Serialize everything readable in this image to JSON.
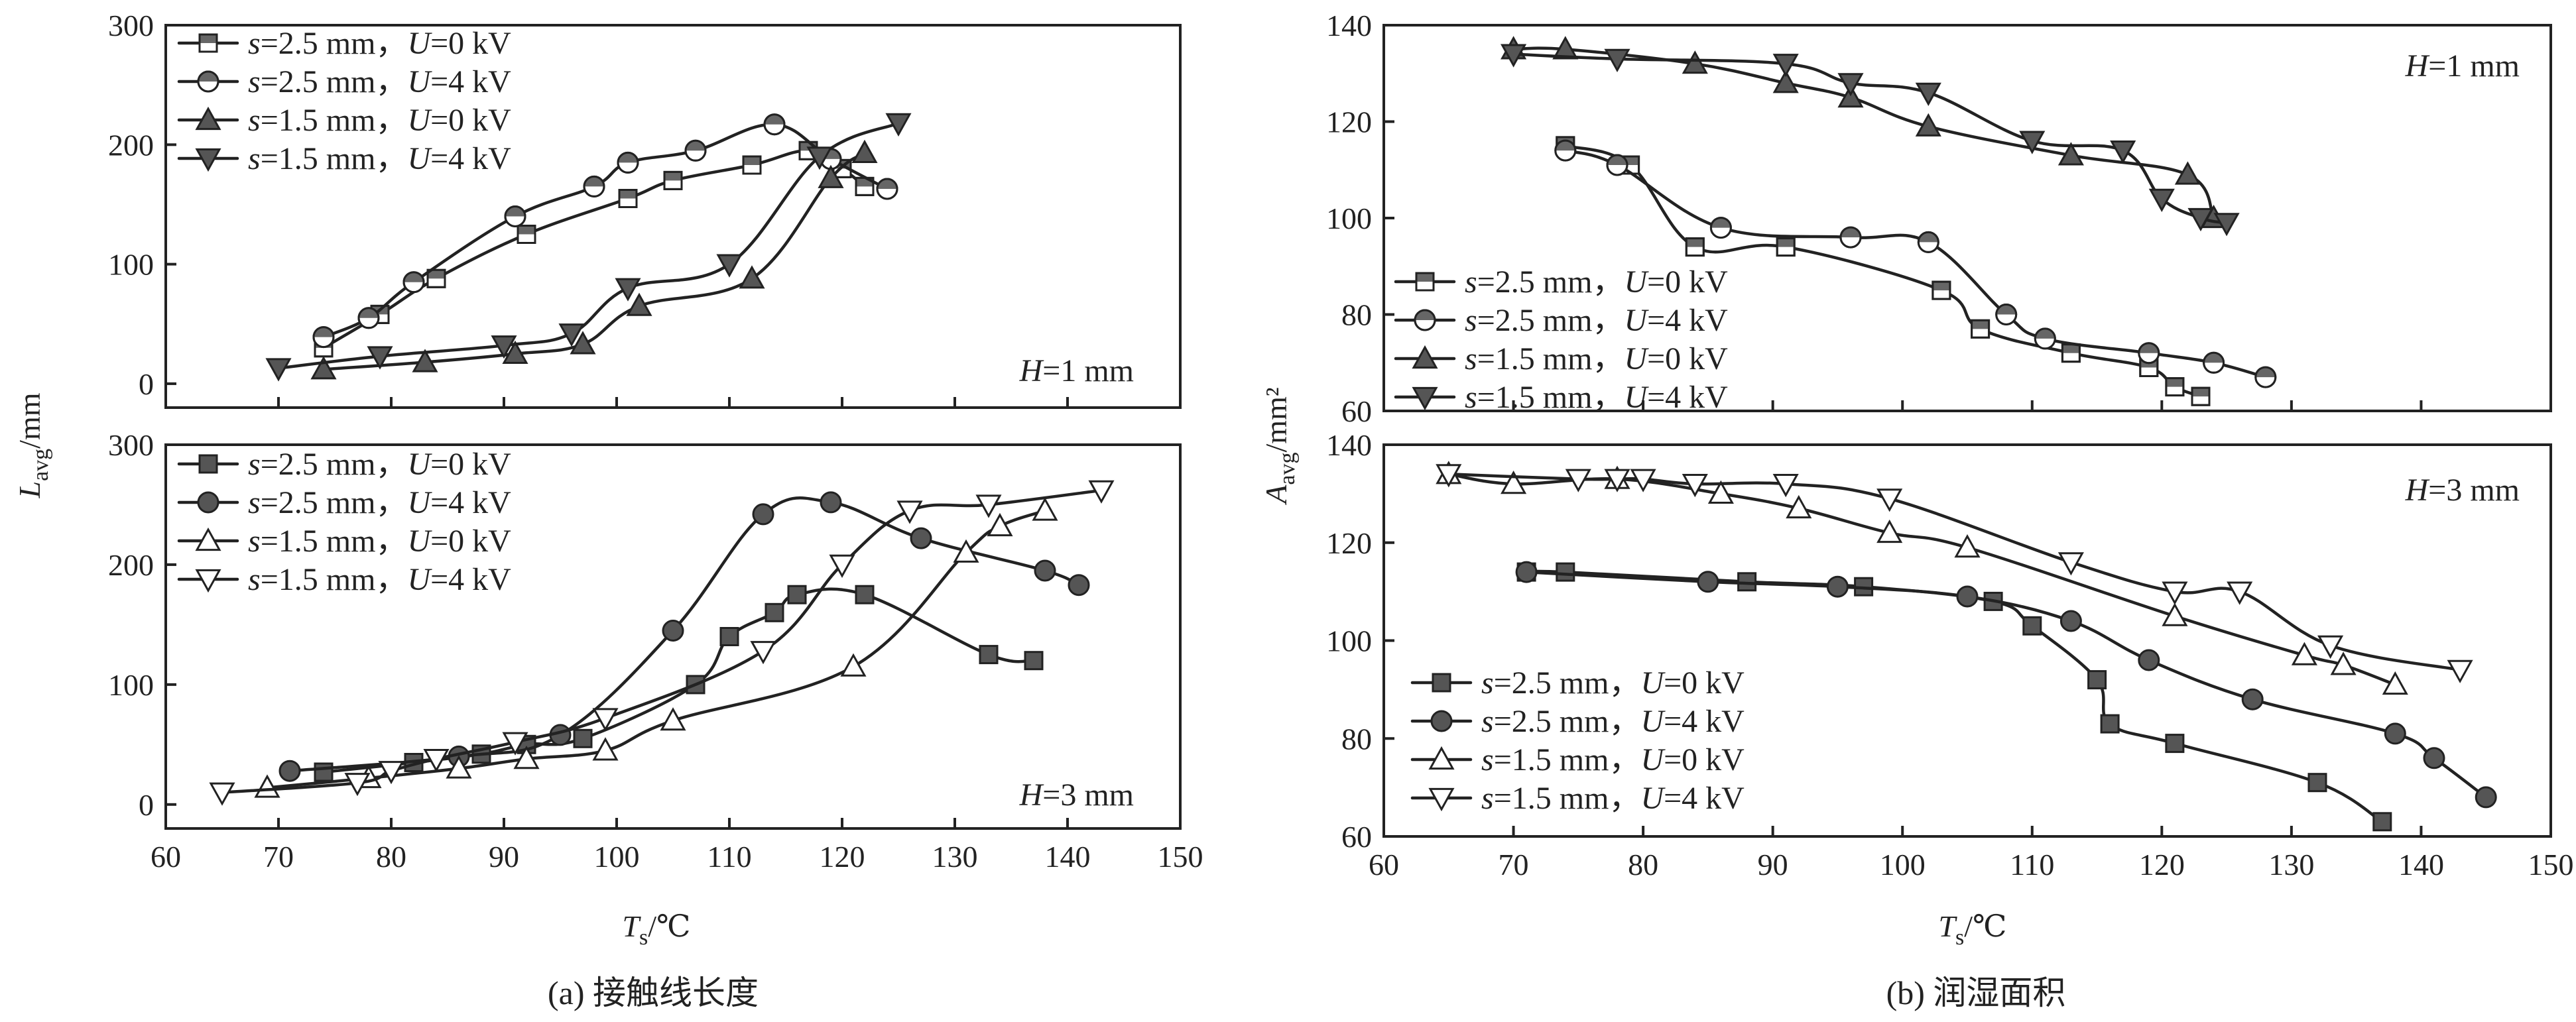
{
  "figure": {
    "x_axis_label": "T",
    "x_axis_sub": "s",
    "x_axis_unit": "/℃",
    "left_y_label": "L",
    "left_y_sub": "avg",
    "left_y_unit": "/mm",
    "right_y_label": "A",
    "right_y_sub": "avg",
    "right_y_unit": "/mm²",
    "caption_a": "(a) 接触线长度",
    "caption_b": "(b) 润湿面积",
    "annotations": [
      "H=1 mm",
      "H=3 mm",
      "H=1 mm",
      "H=3 mm"
    ]
  },
  "chart_data": [
    {
      "id": "a-top",
      "type": "line",
      "panel": "(a)",
      "annotation": "H=1 mm",
      "xlim": [
        60,
        150
      ],
      "ylim": [
        -20,
        300
      ],
      "xticks": [],
      "yticks": [
        0,
        100,
        200,
        300
      ],
      "legend": [
        "s=2.5 mm，U=0 kV",
        "s=2.5 mm，U=4 kV",
        "s=1.5 mm，U=0 kV",
        "s=1.5 mm，U=4 kV"
      ],
      "series": [
        {
          "name": "s=2.5 mm，U=0 kV",
          "marker": "square-half",
          "x": [
            74,
            79,
            84,
            92,
            101,
            105,
            112,
            117,
            120,
            122
          ],
          "y": [
            30,
            58,
            88,
            125,
            155,
            170,
            183,
            195,
            180,
            165
          ]
        },
        {
          "name": "s=2.5 mm，U=4 kV",
          "marker": "circle-half",
          "x": [
            74,
            78,
            82,
            91,
            98,
            101,
            107,
            114,
            119,
            124
          ],
          "y": [
            39,
            55,
            85,
            140,
            165,
            185,
            195,
            217,
            188,
            163
          ]
        },
        {
          "name": "s=1.5 mm，U=0 kV",
          "marker": "triangle-up",
          "x": [
            74,
            83,
            91,
            97,
            102,
            112,
            119,
            122
          ],
          "y": [
            12,
            18,
            25,
            33,
            65,
            88,
            172,
            193
          ]
        },
        {
          "name": "s=1.5 mm，U=4 kV",
          "marker": "triangle-down",
          "x": [
            70,
            79,
            90,
            96,
            101,
            110,
            118,
            125
          ],
          "y": [
            13,
            23,
            32,
            42,
            80,
            100,
            190,
            218
          ]
        }
      ]
    },
    {
      "id": "a-bottom",
      "type": "line",
      "panel": "(a)",
      "annotation": "H=3 mm",
      "xlim": [
        60,
        150
      ],
      "ylim": [
        -20,
        300
      ],
      "xticks": [
        60,
        70,
        80,
        90,
        100,
        110,
        120,
        130,
        140,
        150
      ],
      "yticks": [
        0,
        100,
        200,
        300
      ],
      "legend": [
        "s=2.5 mm，U=0 kV",
        "s=2.5 mm，U=4 kV",
        "s=1.5 mm，U=0 kV",
        "s=1.5 mm，U=4 kV"
      ],
      "series": [
        {
          "name": "s=2.5 mm，U=0 kV",
          "marker": "square",
          "x": [
            74,
            82,
            88,
            92,
            97,
            107,
            110,
            114,
            116,
            122,
            133,
            137
          ],
          "y": [
            27,
            35,
            42,
            50,
            55,
            100,
            140,
            160,
            175,
            175,
            125,
            120
          ]
        },
        {
          "name": "s=2.5 mm，U=4 kV",
          "marker": "circle",
          "x": [
            71,
            86,
            95,
            105,
            113,
            119,
            127,
            138,
            141
          ],
          "y": [
            28,
            40,
            58,
            145,
            242,
            252,
            222,
            195,
            183
          ]
        },
        {
          "name": "s=1.5 mm，U=0 kV",
          "marker": "triangle-up-open",
          "x": [
            69,
            78,
            86,
            92,
            99,
            105,
            121,
            131,
            134,
            138
          ],
          "y": [
            14,
            22,
            30,
            38,
            45,
            70,
            115,
            210,
            232,
            245
          ]
        },
        {
          "name": "s=1.5 mm，U=4 kV",
          "marker": "triangle-down-open",
          "x": [
            65,
            77,
            80,
            84,
            91,
            99,
            113,
            120,
            126,
            133,
            143
          ],
          "y": [
            10,
            18,
            28,
            38,
            52,
            72,
            128,
            200,
            245,
            250,
            262
          ]
        }
      ]
    },
    {
      "id": "b-top",
      "type": "line",
      "panel": "(b)",
      "annotation": "H=1 mm",
      "xlim": [
        60,
        150
      ],
      "ylim": [
        60,
        140
      ],
      "xticks": [],
      "yticks": [
        60,
        80,
        100,
        120,
        140
      ],
      "legend": [
        "s=2.5 mm，U=0 kV",
        "s=2.5 mm，U=4 kV",
        "s=1.5 mm，U=0 kV",
        "s=1.5 mm，U=4 kV"
      ],
      "series": [
        {
          "name": "s=2.5 mm，U=0 kV",
          "marker": "square-half",
          "x": [
            74,
            79,
            84,
            91,
            103,
            106,
            113,
            119,
            121,
            123
          ],
          "y": [
            115,
            111,
            94,
            94,
            85,
            77,
            72,
            69,
            65,
            63
          ]
        },
        {
          "name": "s=2.5 mm，U=4 kV",
          "marker": "circle-half",
          "x": [
            74,
            78,
            86,
            96,
            102,
            108,
            111,
            119,
            124,
            128
          ],
          "y": [
            114,
            111,
            98,
            96,
            95,
            80,
            75,
            72,
            70,
            67
          ]
        },
        {
          "name": "s=1.5 mm，U=0 kV",
          "marker": "triangle-up",
          "x": [
            70,
            74,
            84,
            91,
            96,
            102,
            113,
            122,
            124
          ],
          "y": [
            135,
            135,
            132,
            128,
            125,
            119,
            113,
            109,
            100
          ]
        },
        {
          "name": "s=1.5 mm，U=4 kV",
          "marker": "triangle-down",
          "x": [
            70,
            78,
            91,
            96,
            102,
            110,
            117,
            120,
            123,
            125
          ],
          "y": [
            134,
            133,
            132,
            128,
            126,
            116,
            114,
            104,
            100,
            99
          ]
        }
      ]
    },
    {
      "id": "b-bottom",
      "type": "line",
      "panel": "(b)",
      "annotation": "H=3 mm",
      "xlim": [
        60,
        150
      ],
      "ylim": [
        60,
        140
      ],
      "xticks": [
        60,
        70,
        80,
        90,
        100,
        110,
        120,
        130,
        140,
        150
      ],
      "yticks": [
        60,
        80,
        100,
        120,
        140
      ],
      "legend": [
        "s=2.5 mm，U=0 kV",
        "s=2.5 mm，U=4 kV",
        "s=1.5 mm，U=0 kV",
        "s=1.5 mm，U=4 kV"
      ],
      "series": [
        {
          "name": "s=2.5 mm，U=0 kV",
          "marker": "square",
          "x": [
            71,
            74,
            88,
            97,
            107,
            110,
            115,
            116,
            121,
            132,
            137
          ],
          "y": [
            114,
            114,
            112,
            111,
            108,
            103,
            92,
            83,
            79,
            71,
            63
          ]
        },
        {
          "name": "s=2.5 mm，U=4 kV",
          "marker": "circle",
          "x": [
            71,
            85,
            95,
            105,
            113,
            119,
            127,
            138,
            141,
            145
          ],
          "y": [
            114,
            112,
            111,
            109,
            104,
            96,
            88,
            81,
            76,
            68
          ]
        },
        {
          "name": "s=1.5 mm，U=0 kV",
          "marker": "triangle-up-open",
          "x": [
            65,
            70,
            78,
            86,
            92,
            99,
            105,
            121,
            131,
            134,
            138
          ],
          "y": [
            134,
            132,
            133,
            130,
            127,
            122,
            119,
            105,
            97,
            95,
            91
          ]
        },
        {
          "name": "s=1.5 mm，U=4 kV",
          "marker": "triangle-down-open",
          "x": [
            65,
            75,
            78,
            80,
            84,
            91,
            99,
            113,
            121,
            126,
            133,
            143
          ],
          "y": [
            134,
            133,
            133,
            133,
            132,
            132,
            129,
            116,
            110,
            110,
            99,
            94
          ]
        }
      ]
    }
  ]
}
